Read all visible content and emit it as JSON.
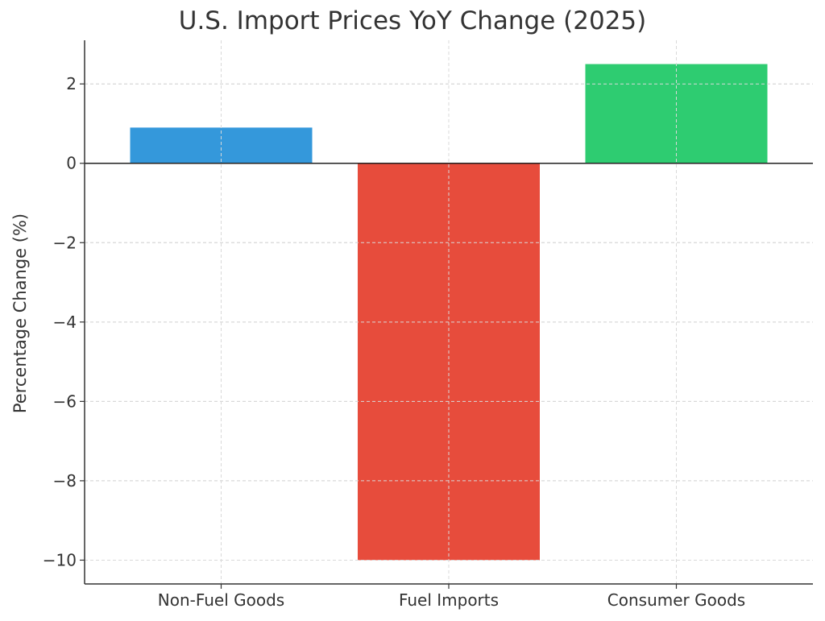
{
  "chart_data": {
    "type": "bar",
    "title": "U.S. Import Prices YoY Change (2025)",
    "xlabel": "",
    "ylabel": "Percentage Change (%)",
    "categories": [
      "Non-Fuel Goods",
      "Fuel Imports",
      "Consumer Goods"
    ],
    "values": [
      0.9,
      -10.0,
      2.5
    ],
    "colors": [
      "#3498db",
      "#e74c3c",
      "#2ecc71"
    ],
    "ylim": [
      -10.6,
      3.1
    ],
    "yticks": [
      2,
      0,
      -2,
      -4,
      -6,
      -8,
      -10
    ],
    "ytick_labels": [
      "2",
      "0",
      "−2",
      "−4",
      "−6",
      "−8",
      "−10"
    ],
    "grid": true,
    "legend": "none"
  }
}
